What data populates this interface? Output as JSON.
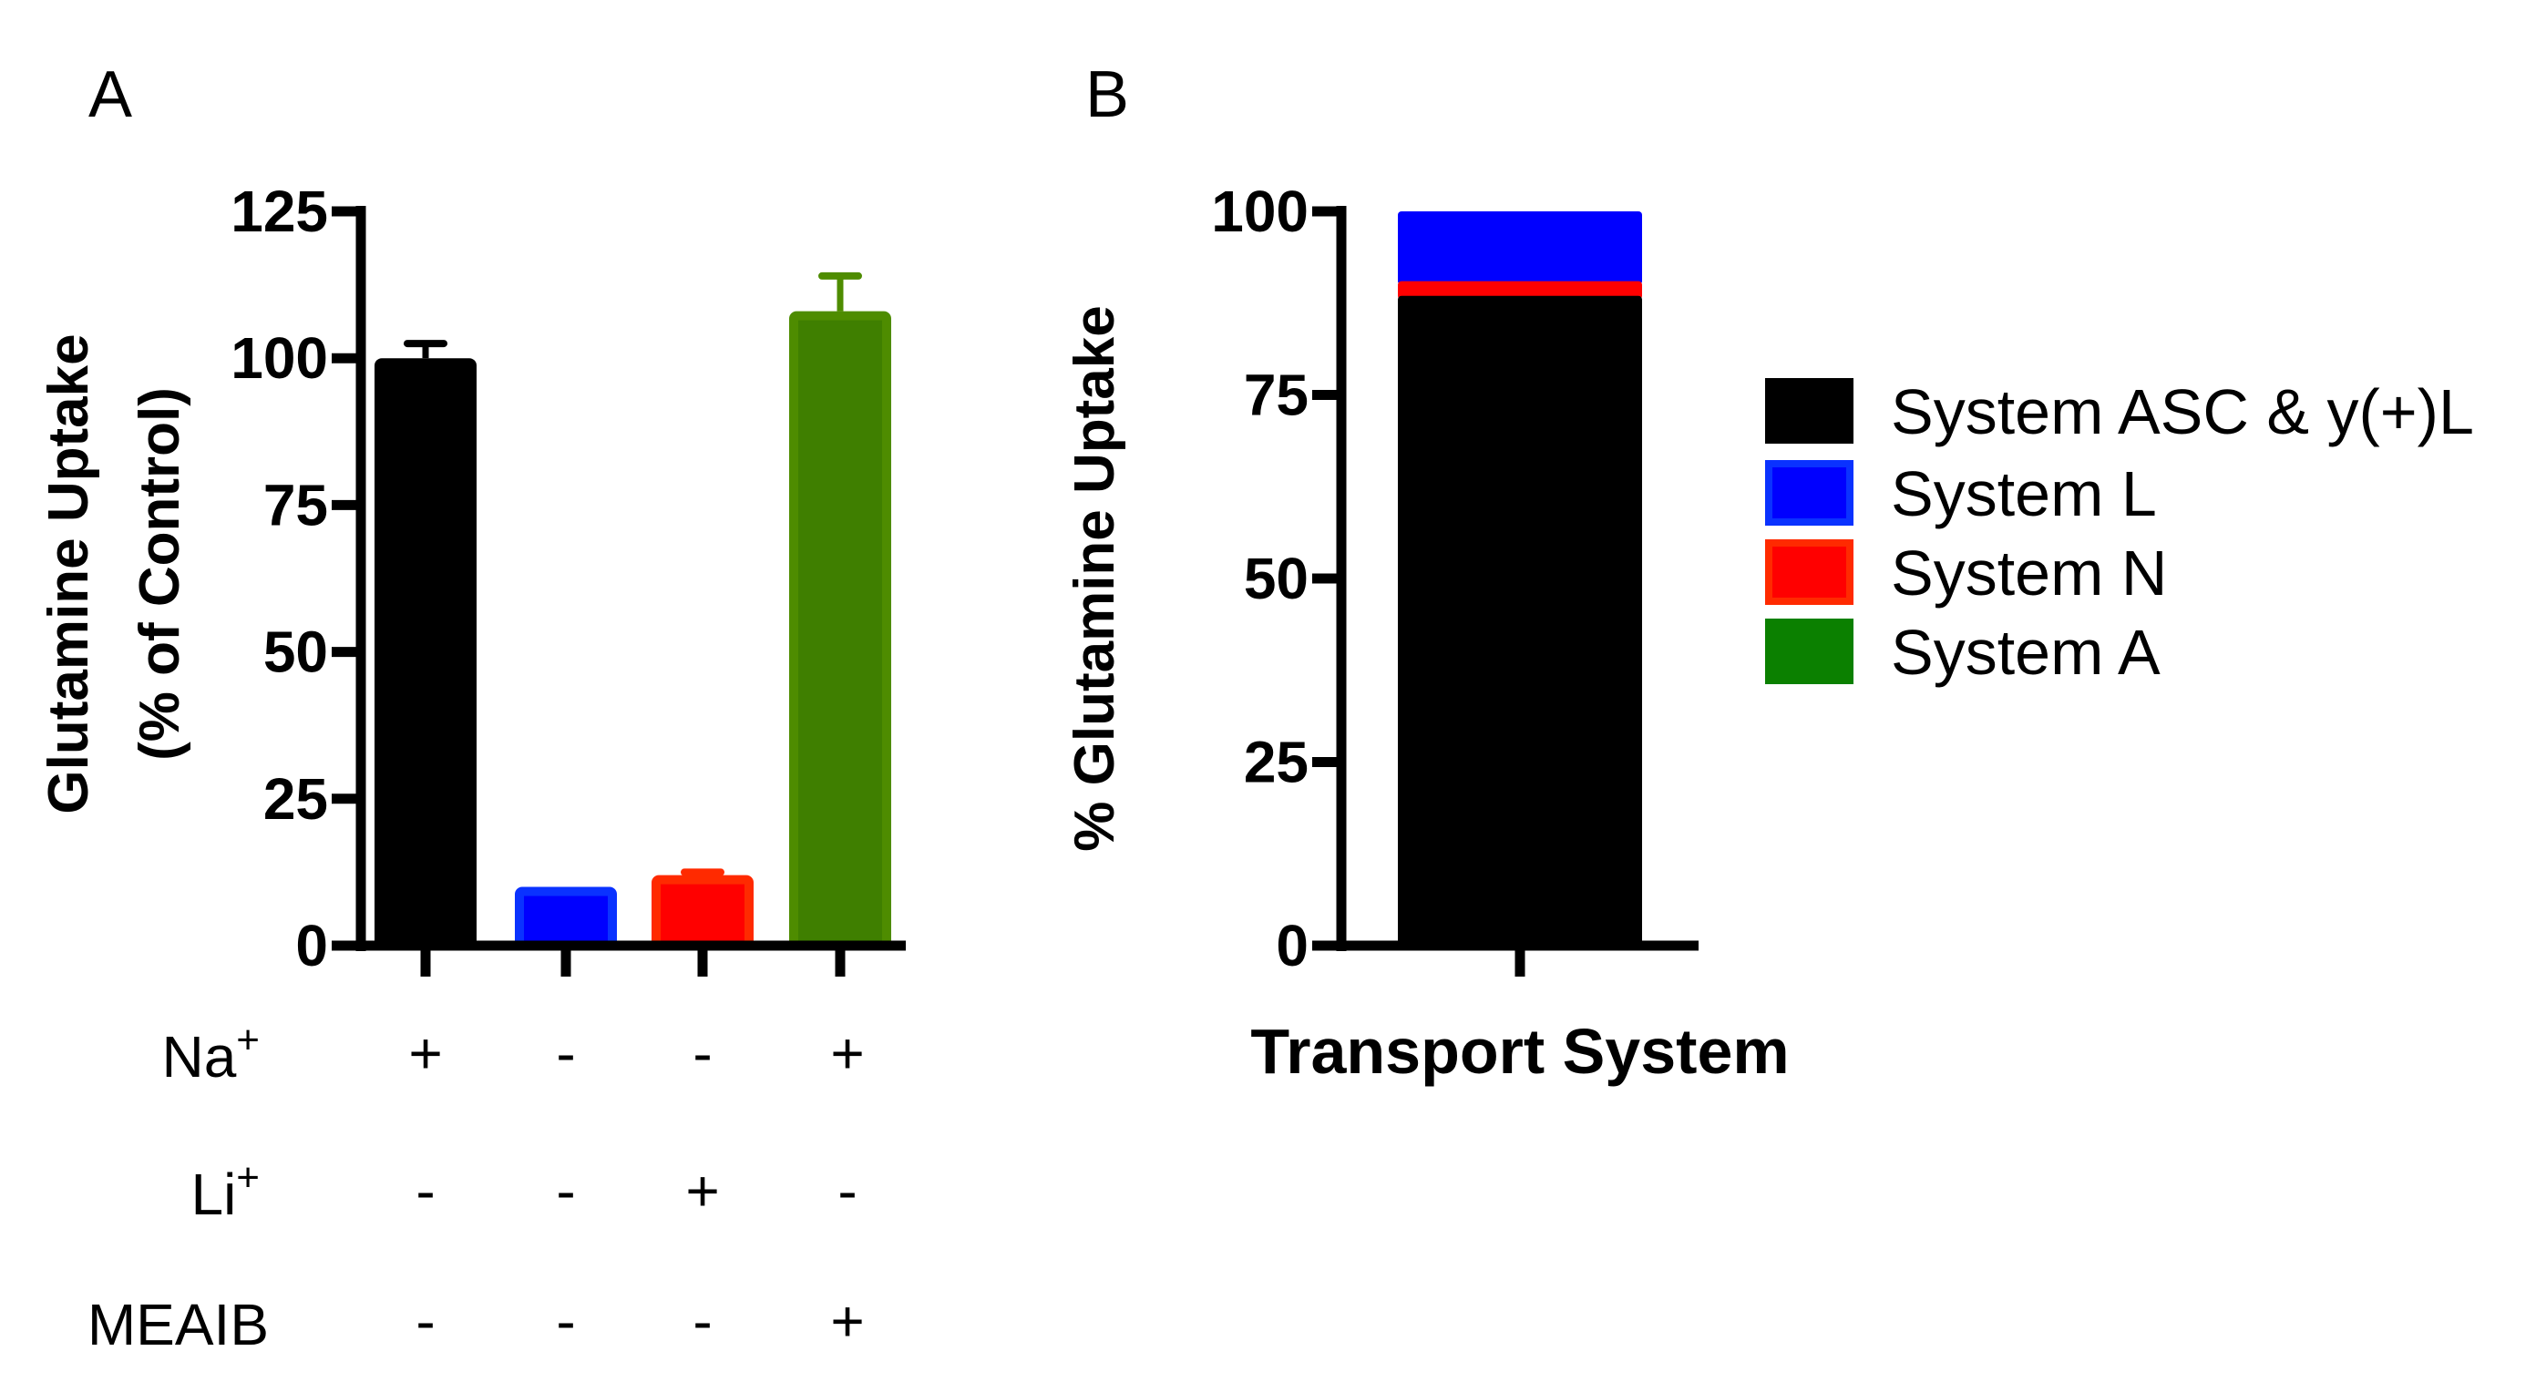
{
  "chart_data": [
    {
      "panel_label": "A",
      "type": "bar",
      "ylabel_line1": "Glutamine Uptake",
      "ylabel_line2": "(% of Control)",
      "ylim": [
        0,
        125
      ],
      "yticks": [
        "0",
        "25",
        "50",
        "75",
        "100",
        "125"
      ],
      "grid": false,
      "bars": [
        {
          "value": 100,
          "error": 2.5,
          "color": "#000000",
          "edge": "#000000"
        },
        {
          "value": 10,
          "error": 0,
          "color": "#0000ff",
          "edge": "#0a32ff"
        },
        {
          "value": 12,
          "error": 0.5,
          "color": "#ff0000",
          "edge": "#ff2a00"
        },
        {
          "value": 108,
          "error": 6,
          "color": "#3f7f00",
          "edge": "#4e8c00"
        }
      ],
      "conditions": [
        {
          "label": "Na",
          "sup": "+",
          "values": [
            "+",
            "-",
            "-",
            "+"
          ]
        },
        {
          "label": "Li",
          "sup": "+",
          "values": [
            "-",
            "-",
            "+",
            "-"
          ]
        },
        {
          "label": "MEAIB",
          "sup": "",
          "values": [
            "-",
            "-",
            "-",
            "+"
          ]
        }
      ]
    },
    {
      "panel_label": "B",
      "type": "bar",
      "stacked": true,
      "ylabel": "% Glutamine Uptake",
      "xlabel": "Transport System",
      "ylim": [
        0,
        100
      ],
      "yticks": [
        "0",
        "25",
        "50",
        "75",
        "100"
      ],
      "grid": false,
      "legend_position": "right",
      "series": [
        {
          "name": "System ASC & y(+)L",
          "value": 88.5,
          "color": "#000000"
        },
        {
          "name": "System L",
          "value": 9.5,
          "color": "#0000ff"
        },
        {
          "name": "System N",
          "value": 2.0,
          "color": "#ff0000"
        },
        {
          "name": "System A",
          "value": 0,
          "color": "#0b8000"
        }
      ],
      "stack_order": [
        0,
        2,
        1
      ]
    }
  ]
}
